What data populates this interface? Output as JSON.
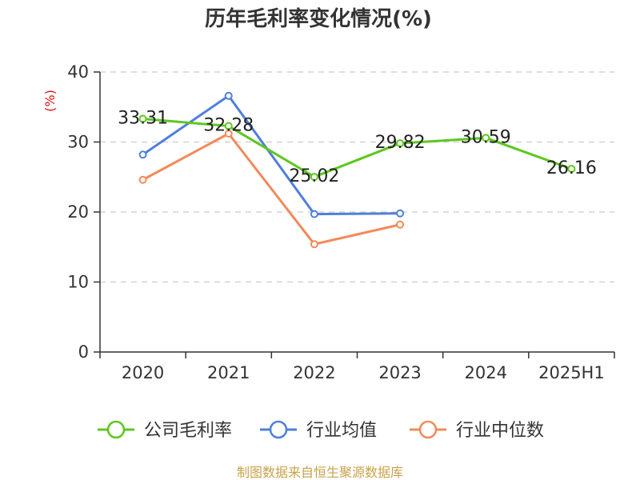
{
  "chart_data": {
    "type": "line",
    "title": "历年毛利率变化情况(%)",
    "ylabel": "(%)",
    "xlabel": "",
    "categories": [
      "2020",
      "2021",
      "2022",
      "2023",
      "2024",
      "2025H1"
    ],
    "ylim": [
      0,
      40
    ],
    "yticks": [
      0,
      10,
      20,
      30,
      40
    ],
    "grid": true,
    "legend_position": "bottom",
    "series": [
      {
        "name": "公司毛利率",
        "color": "#5cc81e",
        "values": [
          33.31,
          32.28,
          25.02,
          29.82,
          30.59,
          26.16
        ],
        "labels": [
          "33.31",
          "32.28",
          "25.02",
          "29.82",
          "30.59",
          "26.16"
        ]
      },
      {
        "name": "行业均值",
        "color": "#4f7fdc",
        "values": [
          28.2,
          36.6,
          19.7,
          19.8,
          null,
          null
        ]
      },
      {
        "name": "行业中位数",
        "color": "#f28a5a",
        "values": [
          24.6,
          31.2,
          15.4,
          18.2,
          null,
          null
        ]
      }
    ],
    "source": "制图数据来自恒生聚源数据库"
  }
}
